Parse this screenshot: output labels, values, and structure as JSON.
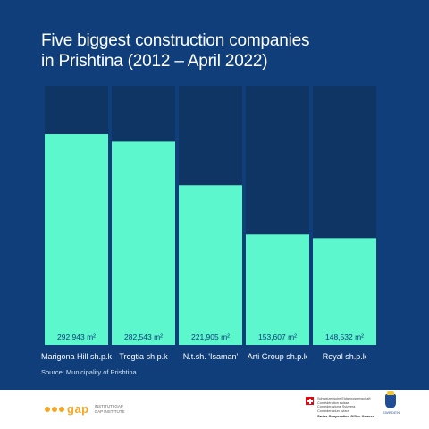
{
  "title_lines": [
    "Five biggest construction companies",
    "in Prishtina (2012 – April 2022)"
  ],
  "source": "Source: Municipality of Prishtina",
  "chart_data": {
    "type": "bar",
    "categories": [
      "Marigona Hill sh.p.k",
      "Tregtia sh.p.k",
      "N.t.sh. 'Isaman'",
      "Arti Group sh.p.k",
      "Royal sh.p.k"
    ],
    "values": [
      292943,
      282543,
      221905,
      153607,
      148532
    ],
    "value_labels": [
      "292,943 m²",
      "282,543 m²",
      "221,905 m²",
      "153,607 m²",
      "148,532 m²"
    ],
    "title": "Five biggest construction companies in Prishtina (2012 – April 2022)",
    "xlabel": "",
    "ylabel": "",
    "ylim": [
      0,
      360000
    ],
    "grid": false,
    "colors": {
      "bar": "#5cf7cd",
      "track": "#0e3564",
      "background": "#0f3e7a",
      "text": "#ffffff"
    }
  },
  "footer": {
    "gap_name": "gap",
    "gap_sub": [
      "INSTITUTI GAP",
      "GAP INSTITUTE"
    ],
    "swiss_lines": [
      "Schweizerische Eidgenossenschaft",
      "Confédération suisse",
      "Confederazione Svizzera",
      "Confederaziun svizra"
    ],
    "swiss_office": "Swiss Cooperation Office Kosovo",
    "sweden": "SWEDEN",
    "gap_color": "#f5a623",
    "swiss_red": "#e30613"
  }
}
